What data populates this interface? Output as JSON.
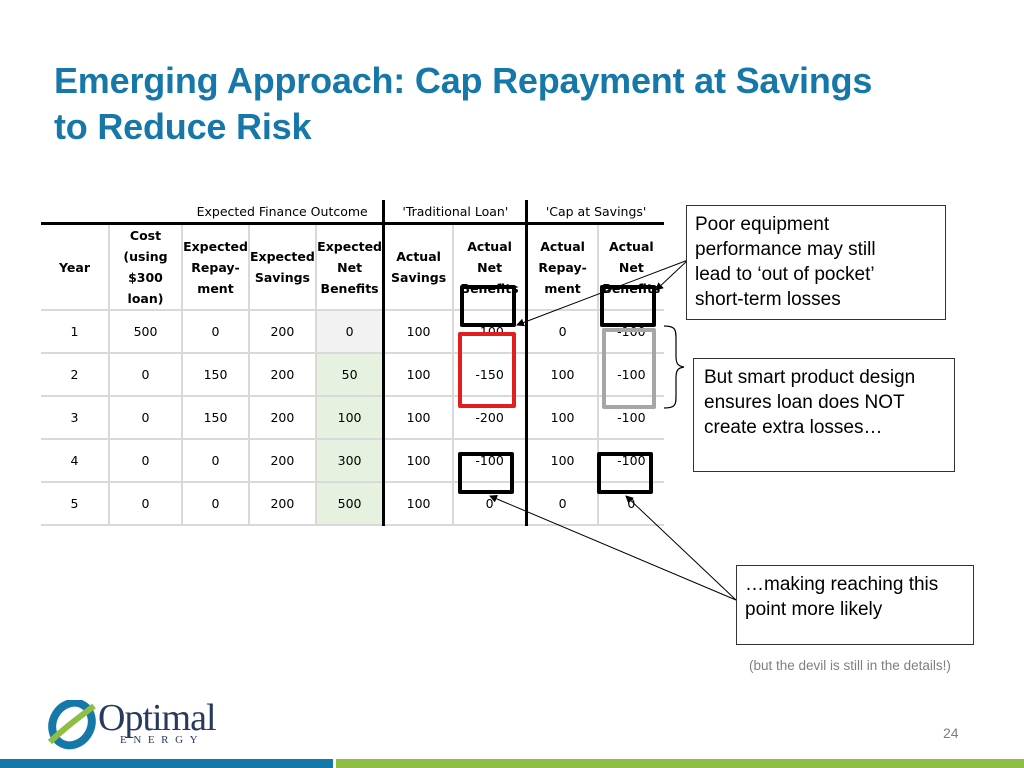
{
  "title": {
    "line1": "Emerging Approach: Cap Repayment at Savings",
    "line2": "to Reduce Risk"
  },
  "table": {
    "group_headers": {
      "expected": "Expected Finance Outcome",
      "traditional": "'Traditional Loan'",
      "cap": "'Cap at Savings'"
    },
    "columns": {
      "year": "Year",
      "cost": [
        "Cost",
        "(using",
        "$300 loan)"
      ],
      "exp_repay": [
        "Expected",
        "Repay-",
        "ment"
      ],
      "exp_savings": [
        "Expected",
        "Savings"
      ],
      "exp_net": [
        "Expected",
        "Net",
        "Benefits"
      ],
      "act_savings": [
        "Actual",
        "Savings"
      ],
      "act_net": [
        "Actual Net",
        "Benefits"
      ],
      "cap_repay": [
        "Actual",
        "Repay-",
        "ment"
      ],
      "cap_net": [
        "Actual",
        "Net",
        "Benefits"
      ]
    },
    "rows": [
      [
        "1",
        "500",
        "0",
        "200",
        "0",
        "100",
        "-100",
        "0",
        "-100"
      ],
      [
        "2",
        "0",
        "150",
        "200",
        "50",
        "100",
        "-150",
        "100",
        "-100"
      ],
      [
        "3",
        "0",
        "150",
        "200",
        "100",
        "100",
        "-200",
        "100",
        "-100"
      ],
      [
        "4",
        "0",
        "0",
        "200",
        "300",
        "100",
        "-100",
        "100",
        "-100"
      ],
      [
        "5",
        "0",
        "0",
        "200",
        "500",
        "100",
        "0",
        "0",
        "0"
      ]
    ]
  },
  "callouts": {
    "poor_equipment": [
      "Poor equipment",
      "performance may still",
      "lead to ‘out of pocket’",
      "short-term losses"
    ],
    "smart_design": [
      "But smart product design",
      "ensures loan does NOT",
      "create extra losses…"
    ],
    "making_reaching": [
      "…making reaching this",
      "point more likely"
    ]
  },
  "note": "(but the devil is still in the details!)",
  "page_number": "24",
  "logo": {
    "word": "Optimal",
    "sub": "ENERGY"
  },
  "colors": {
    "title": "#1677a9",
    "highlight_red": "#e41e1e",
    "highlight_black": "#000000",
    "highlight_gray": "#a6a6a6",
    "bar_blue": "#1677a9",
    "bar_green": "#8fbe45"
  }
}
